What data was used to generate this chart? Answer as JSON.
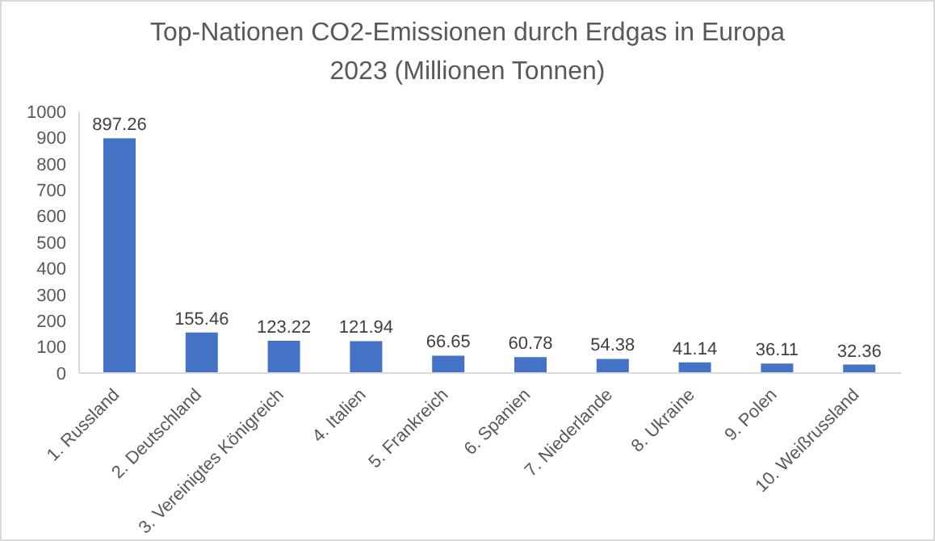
{
  "chart_data": {
    "type": "bar",
    "title": "Top-Nationen CO2-Emissionen durch Erdgas in Europa 2023 (Millionen Tonnen)",
    "categories": [
      "1. Russland",
      "2. Deutschland",
      "3. Vereinigtes Königreich",
      "4. Italien",
      "5. Frankreich",
      "6. Spanien",
      "7. Niederlande",
      "8. Ukraine",
      "9. Polen",
      "10. Weißrussland"
    ],
    "values": [
      897.26,
      155.46,
      123.22,
      121.94,
      66.65,
      60.78,
      54.38,
      41.14,
      36.11,
      32.36
    ],
    "color": "#4472c4",
    "ylim": [
      0,
      1000
    ],
    "yticks": [
      0,
      100,
      200,
      300,
      400,
      500,
      600,
      700,
      800,
      900,
      1000
    ],
    "data_labels": true
  }
}
